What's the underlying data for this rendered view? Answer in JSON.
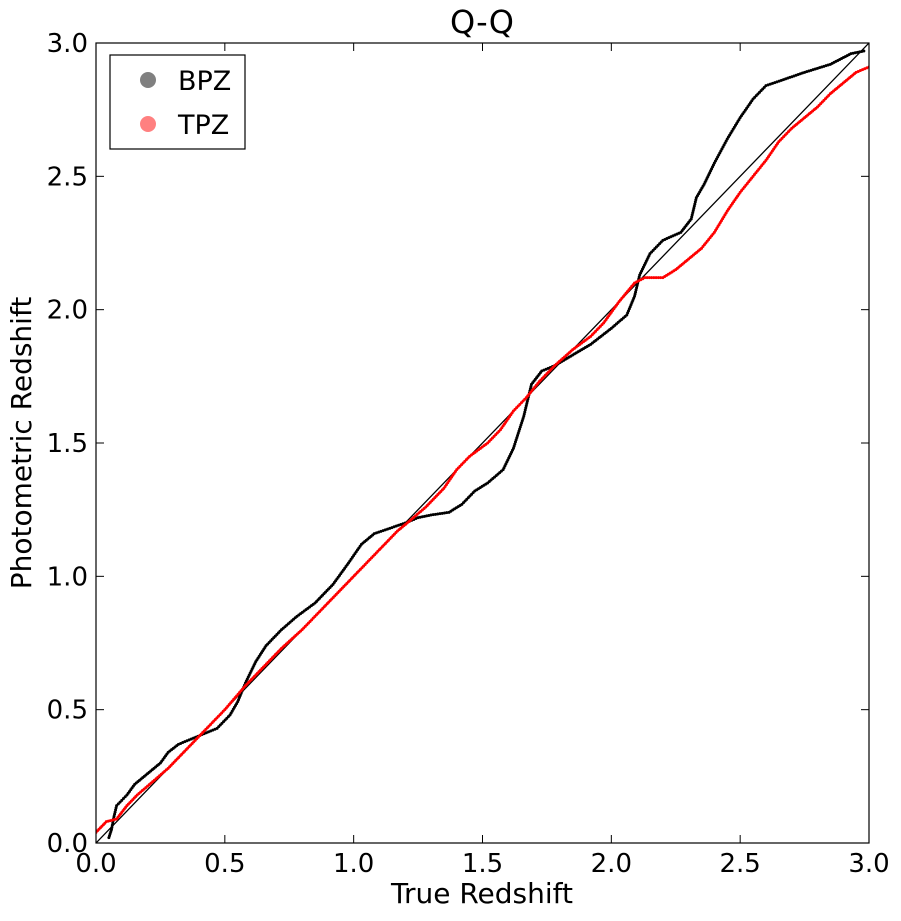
{
  "chart_data": {
    "type": "scatter",
    "title": "Q-Q",
    "xlabel": "True Redshift",
    "ylabel": "Photometric Redshift",
    "xlim": [
      0.0,
      3.0
    ],
    "ylim": [
      0.0,
      3.0
    ],
    "x_ticks": [
      "0.0",
      "0.5",
      "1.0",
      "1.5",
      "2.0",
      "2.5",
      "3.0"
    ],
    "y_ticks": [
      "0.0",
      "0.5",
      "1.0",
      "1.5",
      "2.0",
      "2.5",
      "3.0"
    ],
    "grid": false,
    "legend_position": "top-left",
    "reference_line": {
      "x": [
        0.0,
        3.0
      ],
      "y": [
        0.0,
        3.0
      ],
      "color": "#000000"
    },
    "series": [
      {
        "name": "BPZ",
        "color": "#000000",
        "legend_color": "#808080",
        "points": [
          [
            0.05,
            0.02
          ],
          [
            0.06,
            0.05
          ],
          [
            0.07,
            0.1
          ],
          [
            0.08,
            0.14
          ],
          [
            0.1,
            0.16
          ],
          [
            0.12,
            0.18
          ],
          [
            0.15,
            0.22
          ],
          [
            0.2,
            0.26
          ],
          [
            0.25,
            0.3
          ],
          [
            0.28,
            0.34
          ],
          [
            0.32,
            0.37
          ],
          [
            0.37,
            0.39
          ],
          [
            0.42,
            0.41
          ],
          [
            0.47,
            0.43
          ],
          [
            0.52,
            0.48
          ],
          [
            0.55,
            0.53
          ],
          [
            0.58,
            0.6
          ],
          [
            0.62,
            0.68
          ],
          [
            0.66,
            0.74
          ],
          [
            0.72,
            0.8
          ],
          [
            0.78,
            0.85
          ],
          [
            0.85,
            0.9
          ],
          [
            0.92,
            0.97
          ],
          [
            0.98,
            1.05
          ],
          [
            1.03,
            1.12
          ],
          [
            1.08,
            1.16
          ],
          [
            1.14,
            1.18
          ],
          [
            1.2,
            1.2
          ],
          [
            1.25,
            1.22
          ],
          [
            1.3,
            1.23
          ],
          [
            1.37,
            1.24
          ],
          [
            1.42,
            1.27
          ],
          [
            1.47,
            1.32
          ],
          [
            1.52,
            1.35
          ],
          [
            1.58,
            1.4
          ],
          [
            1.62,
            1.48
          ],
          [
            1.66,
            1.6
          ],
          [
            1.69,
            1.72
          ],
          [
            1.73,
            1.77
          ],
          [
            1.78,
            1.79
          ],
          [
            1.85,
            1.83
          ],
          [
            1.92,
            1.87
          ],
          [
            2.0,
            1.93
          ],
          [
            2.06,
            1.98
          ],
          [
            2.09,
            2.05
          ],
          [
            2.11,
            2.13
          ],
          [
            2.15,
            2.21
          ],
          [
            2.2,
            2.26
          ],
          [
            2.27,
            2.29
          ],
          [
            2.31,
            2.34
          ],
          [
            2.33,
            2.42
          ],
          [
            2.36,
            2.47
          ],
          [
            2.4,
            2.55
          ],
          [
            2.45,
            2.64
          ],
          [
            2.5,
            2.72
          ],
          [
            2.55,
            2.79
          ],
          [
            2.6,
            2.84
          ],
          [
            2.66,
            2.86
          ],
          [
            2.75,
            2.89
          ],
          [
            2.85,
            2.92
          ],
          [
            2.93,
            2.96
          ],
          [
            2.98,
            2.97
          ]
        ]
      },
      {
        "name": "TPZ",
        "color": "#ff0000",
        "legend_color": "#ff8080",
        "points": [
          [
            0.0,
            0.04
          ],
          [
            0.04,
            0.08
          ],
          [
            0.08,
            0.09
          ],
          [
            0.12,
            0.14
          ],
          [
            0.16,
            0.18
          ],
          [
            0.22,
            0.23
          ],
          [
            0.28,
            0.28
          ],
          [
            0.35,
            0.35
          ],
          [
            0.42,
            0.42
          ],
          [
            0.5,
            0.5
          ],
          [
            0.58,
            0.59
          ],
          [
            0.65,
            0.66
          ],
          [
            0.72,
            0.73
          ],
          [
            0.8,
            0.8
          ],
          [
            0.88,
            0.88
          ],
          [
            0.95,
            0.95
          ],
          [
            1.02,
            1.02
          ],
          [
            1.1,
            1.1
          ],
          [
            1.17,
            1.17
          ],
          [
            1.22,
            1.21
          ],
          [
            1.28,
            1.26
          ],
          [
            1.35,
            1.33
          ],
          [
            1.4,
            1.4
          ],
          [
            1.45,
            1.45
          ],
          [
            1.52,
            1.5
          ],
          [
            1.57,
            1.55
          ],
          [
            1.62,
            1.62
          ],
          [
            1.67,
            1.67
          ],
          [
            1.72,
            1.73
          ],
          [
            1.78,
            1.79
          ],
          [
            1.85,
            1.85
          ],
          [
            1.92,
            1.9
          ],
          [
            1.97,
            1.95
          ],
          [
            2.03,
            2.03
          ],
          [
            2.09,
            2.1
          ],
          [
            2.13,
            2.12
          ],
          [
            2.2,
            2.12
          ],
          [
            2.25,
            2.15
          ],
          [
            2.3,
            2.19
          ],
          [
            2.35,
            2.23
          ],
          [
            2.4,
            2.29
          ],
          [
            2.45,
            2.37
          ],
          [
            2.5,
            2.44
          ],
          [
            2.55,
            2.5
          ],
          [
            2.6,
            2.56
          ],
          [
            2.65,
            2.63
          ],
          [
            2.7,
            2.68
          ],
          [
            2.75,
            2.72
          ],
          [
            2.8,
            2.76
          ],
          [
            2.85,
            2.81
          ],
          [
            2.9,
            2.85
          ],
          [
            2.95,
            2.89
          ],
          [
            3.0,
            2.91
          ]
        ]
      }
    ]
  }
}
